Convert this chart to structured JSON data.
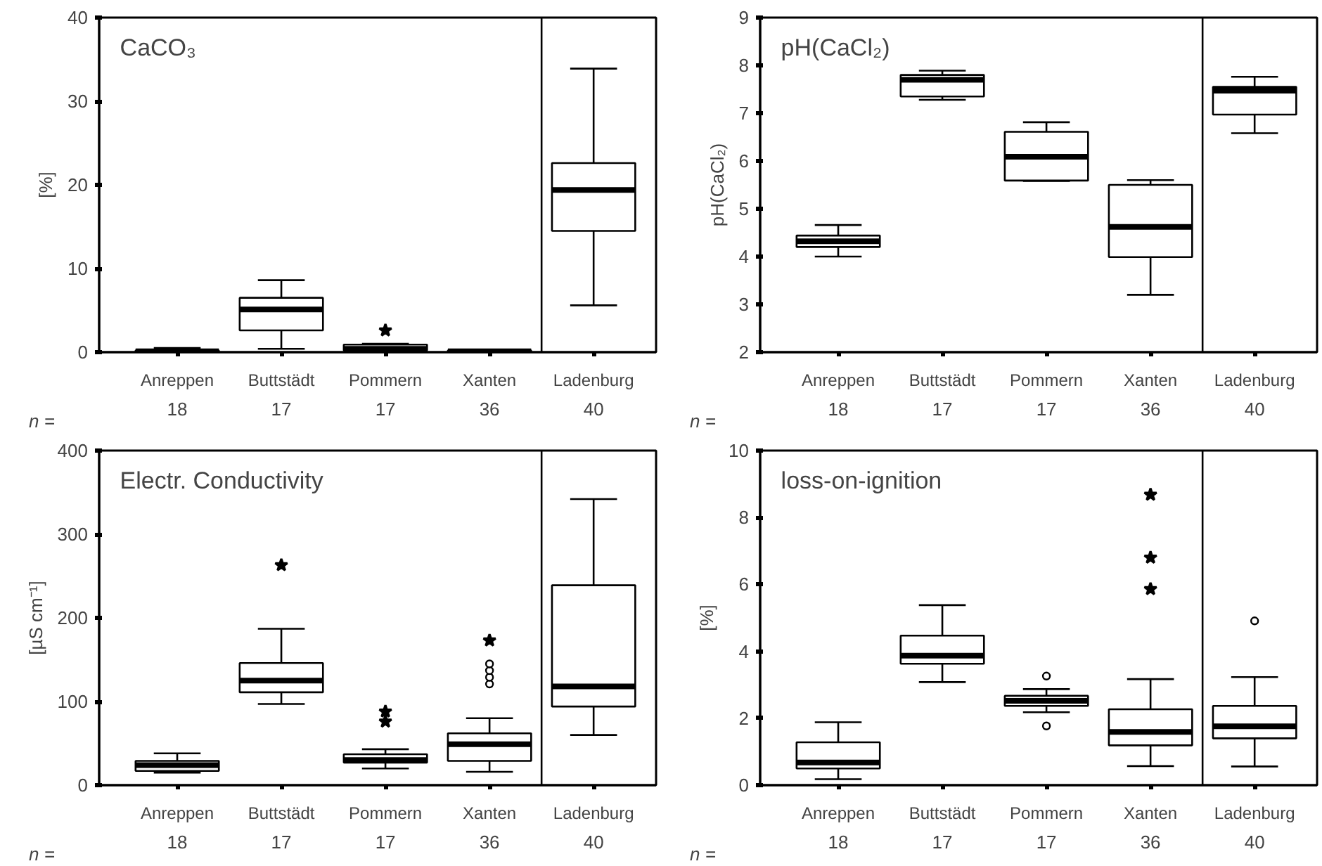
{
  "chart_data": [
    {
      "type": "box",
      "title": "CaCO₃",
      "ylabel": "[%]",
      "categories": [
        "Anreppen",
        "Buttstädt",
        "Pommern",
        "Xanten",
        "Ladenburg"
      ],
      "ylim": [
        0,
        40
      ],
      "yticks": [
        0,
        10,
        20,
        30,
        40
      ],
      "boxes": [
        {
          "low": 0,
          "q1": 0,
          "median": 0.1,
          "q3": 0.2,
          "high": 0.5
        },
        {
          "low": 0.4,
          "q1": 2.6,
          "median": 5.1,
          "q3": 6.5,
          "high": 8.6
        },
        {
          "low": 0,
          "q1": 0.2,
          "median": 0.4,
          "q3": 0.9,
          "high": 1.0
        },
        {
          "low": 0,
          "q1": 0,
          "median": 0.1,
          "q3": 0.2,
          "high": 0.3
        },
        {
          "low": 5.6,
          "q1": 14.5,
          "median": 19.4,
          "q3": 22.6,
          "high": 33.9
        }
      ],
      "series": [
        {
          "type": "scatter",
          "marker": "star",
          "x": [
            "Pommern"
          ],
          "values": [
            2.6
          ]
        }
      ],
      "annotations": [
        "n =",
        "18",
        "17",
        "17",
        "36",
        "40"
      ]
    },
    {
      "type": "box",
      "title": "pH(CaCl₂)",
      "ylabel": "pH(CaCl₂)",
      "categories": [
        "Anreppen",
        "Buttstädt",
        "Pommern",
        "Xanten",
        "Ladenburg"
      ],
      "ylim": [
        2,
        9
      ],
      "yticks": [
        2,
        3,
        4,
        5,
        6,
        7,
        8,
        9
      ],
      "boxes": [
        {
          "low": 4.0,
          "q1": 4.2,
          "median": 4.32,
          "q3": 4.44,
          "high": 4.66
        },
        {
          "low": 7.28,
          "q1": 7.35,
          "median": 7.7,
          "q3": 7.8,
          "high": 7.89
        },
        {
          "low": 5.58,
          "q1": 5.59,
          "median": 6.09,
          "q3": 6.61,
          "high": 6.81
        },
        {
          "low": 3.2,
          "q1": 3.99,
          "median": 4.62,
          "q3": 5.5,
          "high": 5.6
        },
        {
          "low": 6.58,
          "q1": 6.97,
          "median": 7.47,
          "q3": 7.55,
          "high": 7.76
        }
      ],
      "annotations": [
        "n =",
        "18",
        "17",
        "17",
        "36",
        "40"
      ]
    },
    {
      "type": "box",
      "title": "Electr. Conductivity",
      "ylabel": "[µS cm⁻¹]",
      "categories": [
        "Anreppen",
        "Buttstädt",
        "Pommern",
        "Xanten",
        "Ladenburg"
      ],
      "ylim": [
        0,
        400
      ],
      "yticks": [
        0,
        100,
        200,
        300,
        400
      ],
      "boxes": [
        {
          "low": 15,
          "q1": 17,
          "median": 24,
          "q3": 29,
          "high": 38
        },
        {
          "low": 97,
          "q1": 111,
          "median": 125,
          "q3": 146,
          "high": 187
        },
        {
          "low": 20,
          "q1": 27,
          "median": 30,
          "q3": 37,
          "high": 43
        },
        {
          "low": 16,
          "q1": 29,
          "median": 49,
          "q3": 62,
          "high": 80,
          "outliers": [
            121,
            129,
            137,
            145
          ]
        },
        {
          "low": 60,
          "q1": 94,
          "median": 118,
          "q3": 239,
          "high": 342
        }
      ],
      "series": [
        {
          "type": "scatter",
          "marker": "star",
          "x": [
            "Buttstädt",
            "Pommern",
            "Pommern",
            "Xanten"
          ],
          "values": [
            263,
            88,
            76,
            173
          ]
        }
      ],
      "annotations": [
        "n =",
        "18",
        "17",
        "17",
        "36",
        "40"
      ]
    },
    {
      "type": "box",
      "title": "loss-on-ignition",
      "ylabel": "[%]",
      "categories": [
        "Anreppen",
        "Buttstädt",
        "Pommern",
        "Xanten",
        "Ladenburg"
      ],
      "ylim": [
        0,
        10
      ],
      "yticks": [
        0,
        2,
        4,
        6,
        8,
        10
      ],
      "boxes": [
        {
          "low": 0.18,
          "q1": 0.5,
          "median": 0.68,
          "q3": 1.28,
          "high": 1.88
        },
        {
          "low": 3.08,
          "q1": 3.63,
          "median": 3.87,
          "q3": 4.47,
          "high": 5.38
        },
        {
          "low": 2.18,
          "q1": 2.37,
          "median": 2.52,
          "q3": 2.67,
          "high": 2.87,
          "outliers": [
            3.26,
            1.77
          ]
        },
        {
          "low": 0.57,
          "q1": 1.19,
          "median": 1.59,
          "q3": 2.27,
          "high": 3.17
        },
        {
          "low": 0.56,
          "q1": 1.4,
          "median": 1.76,
          "q3": 2.37,
          "high": 3.23,
          "outliers": [
            4.91
          ]
        }
      ],
      "series": [
        {
          "type": "scatter",
          "marker": "star",
          "x": [
            "Xanten",
            "Xanten",
            "Xanten"
          ],
          "values": [
            8.68,
            6.8,
            5.86
          ]
        }
      ],
      "annotations": [
        "n =",
        "18",
        "17",
        "17",
        "36",
        "40"
      ]
    }
  ]
}
